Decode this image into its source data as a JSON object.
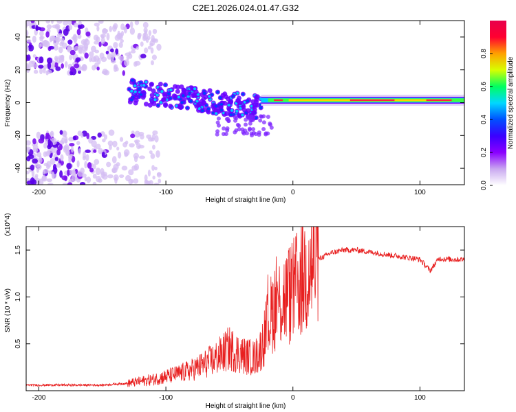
{
  "chart_data": [
    {
      "type": "heatmap",
      "title": "C2E1.2026.024.01.47.G32",
      "xlabel": "Height of straight line (km)",
      "ylabel": "Frequency (Hz)",
      "xlim": [
        -210,
        135
      ],
      "ylim": [
        -50,
        50
      ],
      "xticks": [
        -200,
        -100,
        0,
        100
      ],
      "yticks": [
        -40,
        -20,
        0,
        20,
        40
      ],
      "colorbar": {
        "label": "Normalized spectral amplitude",
        "range": [
          0,
          1
        ],
        "ticks": [
          "0.0",
          "0.2",
          "0.4",
          "0.6",
          "0.8"
        ],
        "colors": [
          "#ffffff",
          "#c9a8f0",
          "#8a00ff",
          "#3a00ff",
          "#0050ff",
          "#00d8ff",
          "#00ff60",
          "#d8ff00",
          "#ffa000",
          "#ff0030",
          "#e8004c"
        ]
      },
      "regions": [
        {
          "name": "scatter-upper",
          "x": [
            -210,
            -105
          ],
          "freq": [
            18,
            50
          ],
          "amplitude": 0.12
        },
        {
          "name": "scatter-lower",
          "x": [
            -210,
            -105
          ],
          "freq": [
            -50,
            -18
          ],
          "amplitude": 0.12
        },
        {
          "name": "signal-track-noisy",
          "x": [
            -130,
            -25
          ],
          "freq_start": 7,
          "freq_end": -3,
          "amplitude": 0.4
        },
        {
          "name": "signal-track-clean",
          "x": [
            -25,
            135
          ],
          "freq": 1.5,
          "amplitude": 0.85
        }
      ]
    },
    {
      "type": "line",
      "title": "",
      "xlabel": "Height of straight line (km)",
      "ylabel": "SNR (10 * v/v)",
      "y_multiplier": "(x10^4)",
      "xlim": [
        -210,
        135
      ],
      "ylim": [
        0,
        1.75
      ],
      "xticks": [
        -200,
        -100,
        0,
        100
      ],
      "yticks": [
        0.5,
        1.0,
        1.5
      ],
      "ytick_labels": [
        "0.5",
        "1.0",
        "1.5"
      ],
      "series": [
        {
          "name": "SNR",
          "color": "#e82020",
          "x": [
            -210,
            -180,
            -150,
            -130,
            -110,
            -100,
            -90,
            -80,
            -70,
            -60,
            -50,
            -40,
            -30,
            -25,
            -20,
            -15,
            -10,
            -5,
            0,
            5,
            10,
            15,
            20,
            30,
            40,
            50,
            60,
            70,
            80,
            90,
            100,
            108,
            115,
            125,
            135
          ],
          "values": [
            0.06,
            0.06,
            0.06,
            0.08,
            0.12,
            0.15,
            0.18,
            0.22,
            0.28,
            0.35,
            0.45,
            0.38,
            0.35,
            0.45,
            0.7,
            0.9,
            0.95,
            1.0,
            1.05,
            1.15,
            1.25,
            1.32,
            1.4,
            1.47,
            1.5,
            1.5,
            1.48,
            1.46,
            1.44,
            1.42,
            1.4,
            1.28,
            1.41,
            1.4,
            1.4
          ]
        }
      ]
    }
  ]
}
